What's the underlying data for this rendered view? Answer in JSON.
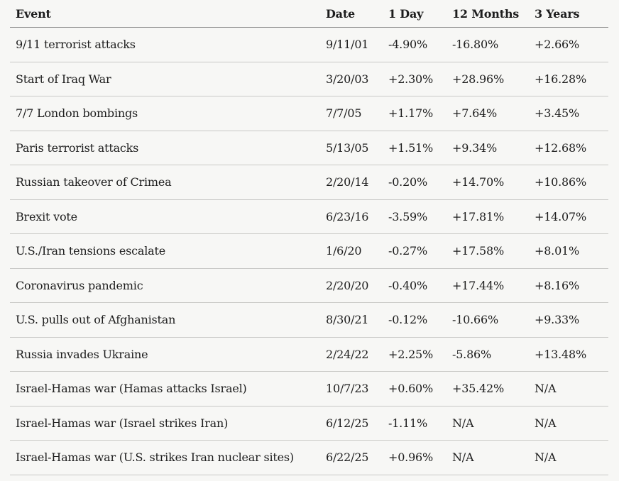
{
  "table": {
    "headers": {
      "event": "Event",
      "date": "Date",
      "day1": "1 Day",
      "months12": "12 Months",
      "years3": "3 Years"
    },
    "rows": [
      {
        "event": "9/11 terrorist attacks",
        "date": "9/11/01",
        "day1": "-4.90%",
        "months12": "-16.80%",
        "years3": "+2.66%"
      },
      {
        "event": "Start of Iraq War",
        "date": "3/20/03",
        "day1": "+2.30%",
        "months12": "+28.96%",
        "years3": "+16.28%"
      },
      {
        "event": "7/7 London bombings",
        "date": "7/7/05",
        "day1": "+1.17%",
        "months12": "+7.64%",
        "years3": "+3.45%"
      },
      {
        "event": "Paris terrorist attacks",
        "date": "5/13/05",
        "day1": "+1.51%",
        "months12": "+9.34%",
        "years3": "+12.68%"
      },
      {
        "event": "Russian takeover of Crimea",
        "date": "2/20/14",
        "day1": "-0.20%",
        "months12": "+14.70%",
        "years3": "+10.86%"
      },
      {
        "event": "Brexit vote",
        "date": "6/23/16",
        "day1": "-3.59%",
        "months12": "+17.81%",
        "years3": "+14.07%"
      },
      {
        "event": "U.S./Iran tensions escalate",
        "date": "1/6/20",
        "day1": "-0.27%",
        "months12": "+17.58%",
        "years3": "+8.01%"
      },
      {
        "event": "Coronavirus pandemic",
        "date": "2/20/20",
        "day1": "-0.40%",
        "months12": "+17.44%",
        "years3": "+8.16%"
      },
      {
        "event": "U.S. pulls out of Afghanistan",
        "date": "8/30/21",
        "day1": "-0.12%",
        "months12": "-10.66%",
        "years3": "+9.33%"
      },
      {
        "event": "Russia invades Ukraine",
        "date": "2/24/22",
        "day1": "+2.25%",
        "months12": "-5.86%",
        "years3": "+13.48%"
      },
      {
        "event": "Israel-Hamas war (Hamas attacks Israel)",
        "date": "10/7/23",
        "day1": "+0.60%",
        "months12": "+35.42%",
        "years3": "N/A"
      },
      {
        "event": "Israel-Hamas war (Israel strikes Iran)",
        "date": "6/12/25",
        "day1": "-1.11%",
        "months12": "N/A",
        "years3": "N/A"
      },
      {
        "event": "Israel-Hamas war (U.S. strikes Iran nuclear sites)",
        "date": "6/22/25",
        "day1": "+0.96%",
        "months12": "N/A",
        "years3": "N/A"
      }
    ]
  }
}
